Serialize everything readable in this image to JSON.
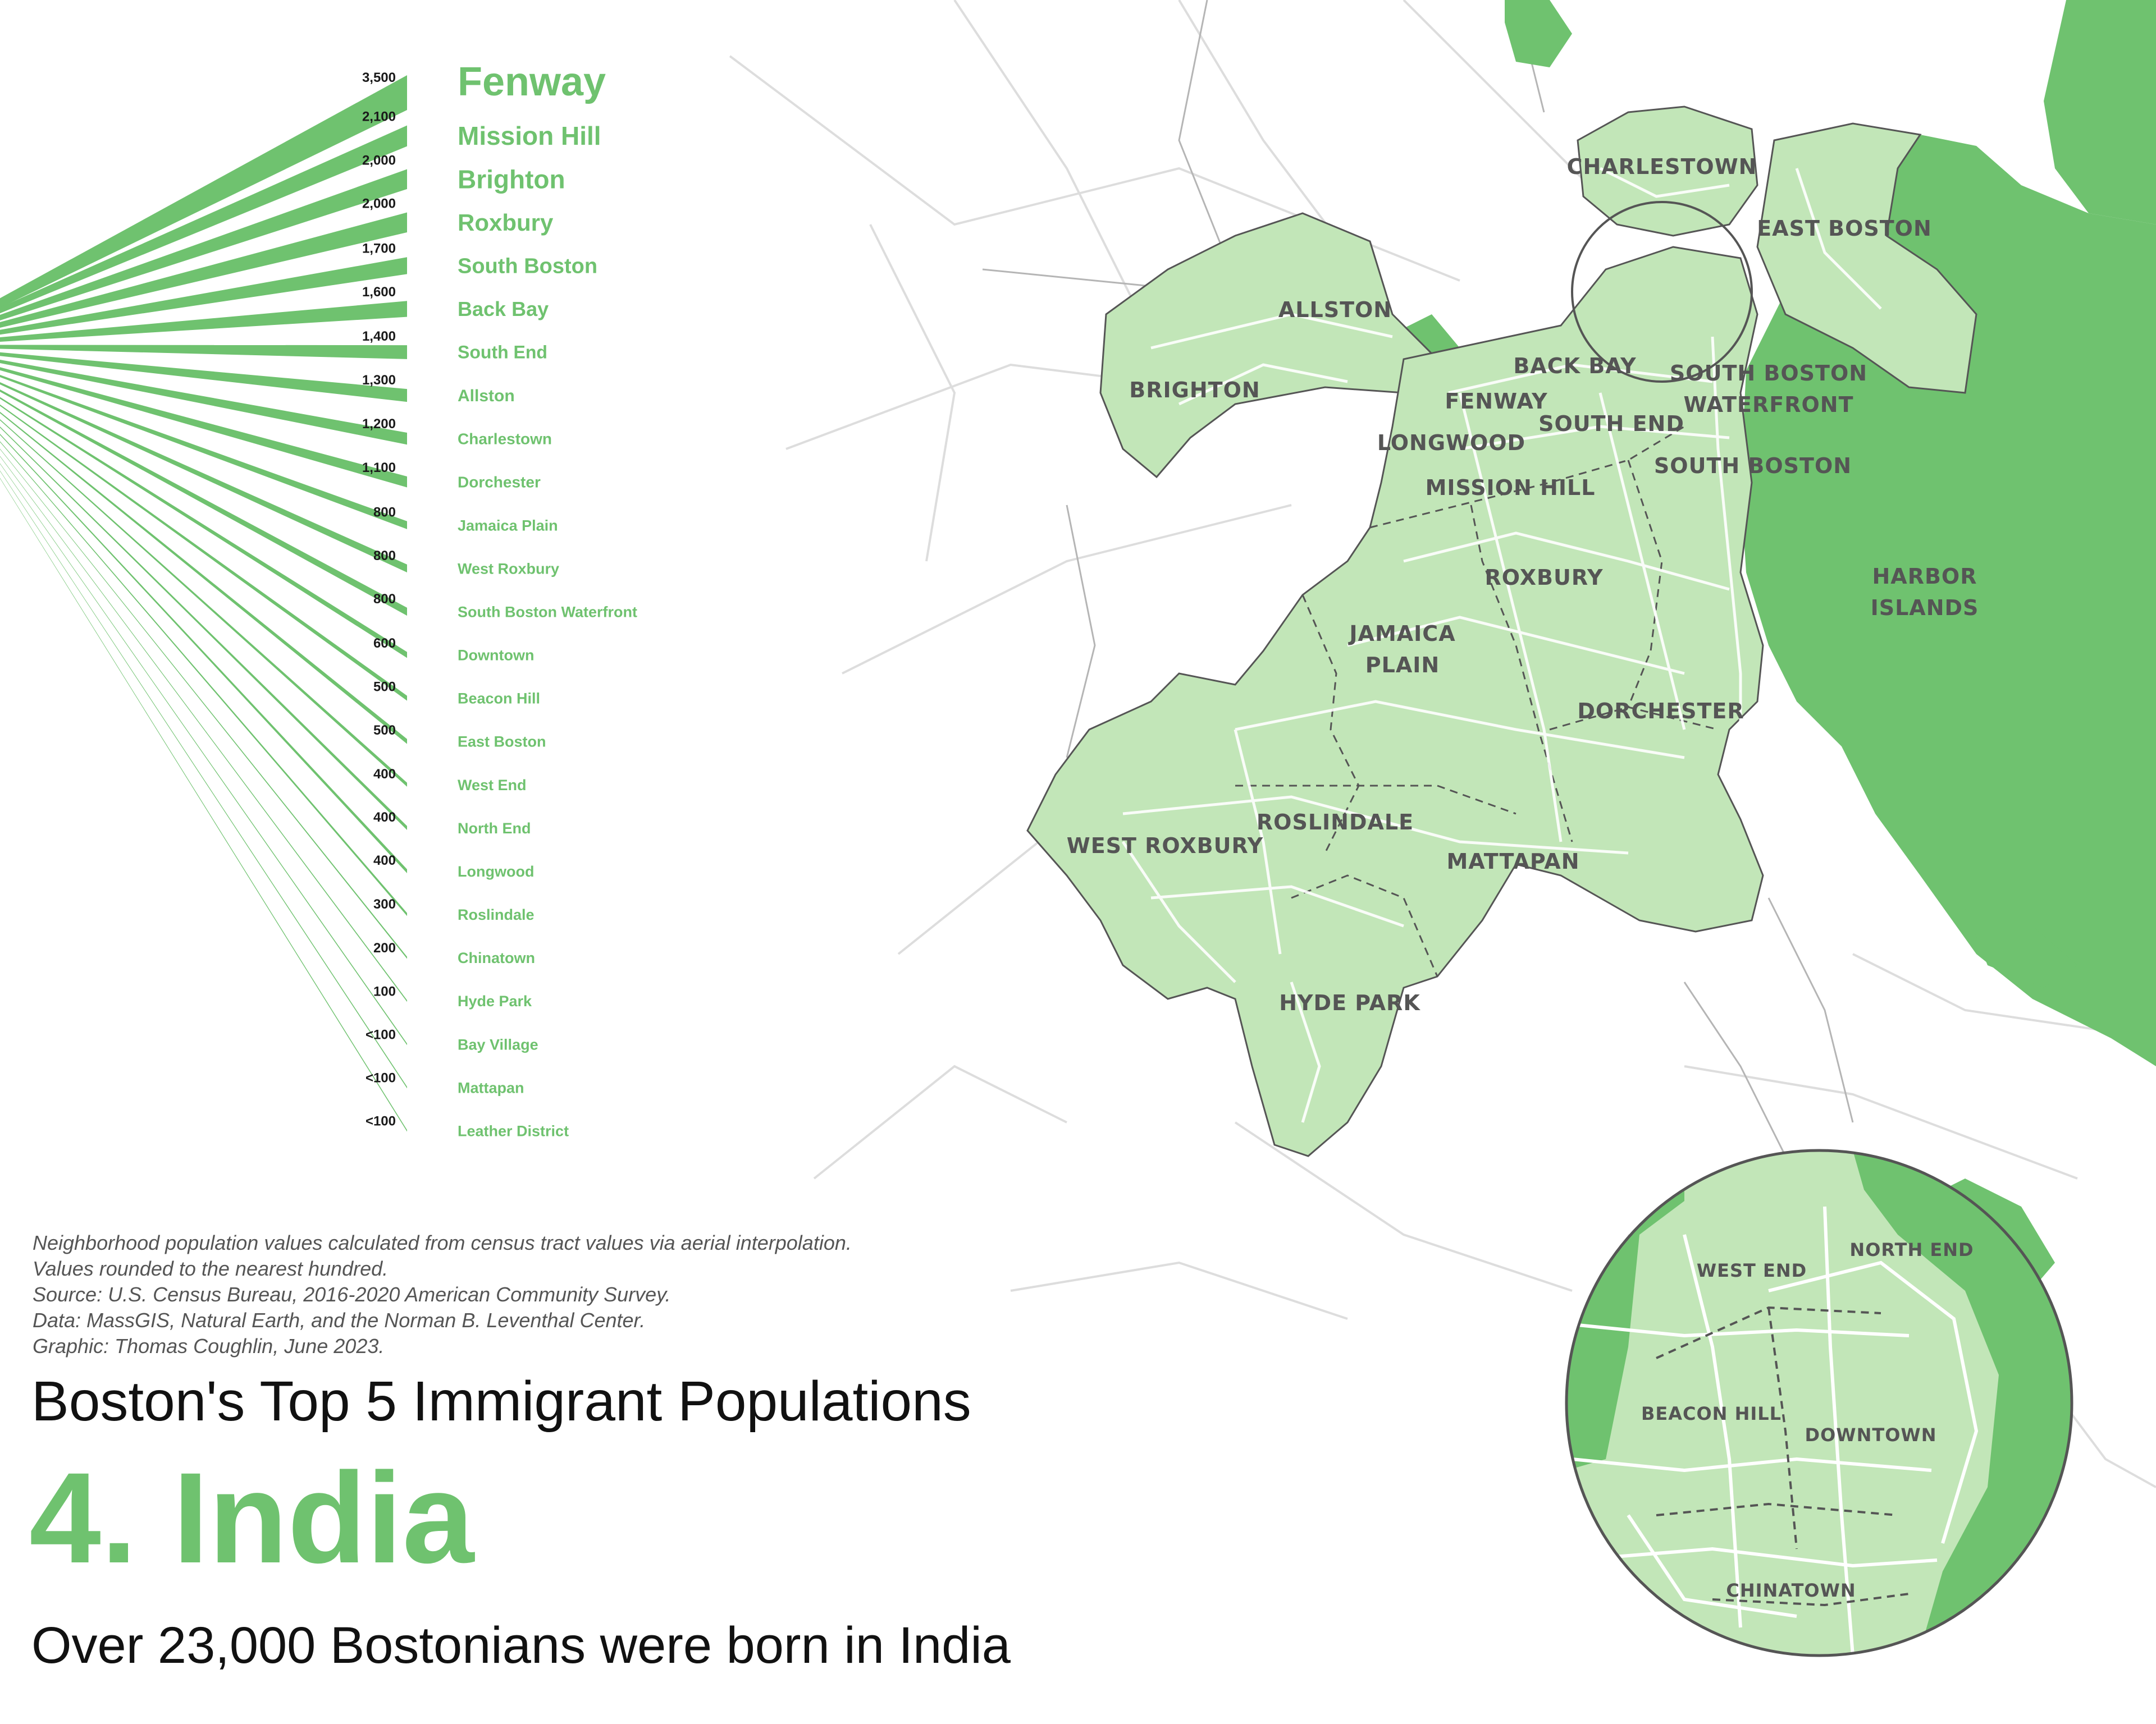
{
  "colors": {
    "water": "#6fc26f",
    "land": "#c2e6b8",
    "accent": "#6fc26f",
    "roads": "#dcdcdc",
    "border": "#555555"
  },
  "ranking": [
    {
      "name": "Fenway",
      "value": "3,500",
      "size": 72
    },
    {
      "name": "Mission Hill",
      "value": "2,100",
      "size": 46
    },
    {
      "name": "Brighton",
      "value": "2,000",
      "size": 46
    },
    {
      "name": "Roxbury",
      "value": "2,000",
      "size": 42
    },
    {
      "name": "South Boston",
      "value": "1,700",
      "size": 38
    },
    {
      "name": "Back Bay",
      "value": "1,600",
      "size": 36
    },
    {
      "name": "South End",
      "value": "1,400",
      "size": 32
    },
    {
      "name": "Allston",
      "value": "1,300",
      "size": 30
    },
    {
      "name": "Charlestown",
      "value": "1,200",
      "size": 28
    },
    {
      "name": "Dorchester",
      "value": "1,100",
      "size": 28
    },
    {
      "name": "Jamaica Plain",
      "value": "800",
      "size": 27
    },
    {
      "name": "West Roxbury",
      "value": "800",
      "size": 27
    },
    {
      "name": "South Boston Waterfront",
      "value": "800",
      "size": 27
    },
    {
      "name": "Downtown",
      "value": "600",
      "size": 27
    },
    {
      "name": "Beacon Hill",
      "value": "500",
      "size": 27
    },
    {
      "name": "East Boston",
      "value": "500",
      "size": 27
    },
    {
      "name": "West End",
      "value": "400",
      "size": 27
    },
    {
      "name": "North End",
      "value": "400",
      "size": 27
    },
    {
      "name": "Longwood",
      "value": "400",
      "size": 27
    },
    {
      "name": "Roslindale",
      "value": "300",
      "size": 27
    },
    {
      "name": "Chinatown",
      "value": "200",
      "size": 27
    },
    {
      "name": "Hyde Park",
      "value": "100",
      "size": 27
    },
    {
      "name": "Bay Village",
      "value": "<100",
      "size": 27
    },
    {
      "name": "Mattapan",
      "value": "<100",
      "size": 27
    },
    {
      "name": "Leather District",
      "value": "<100",
      "size": 27
    }
  ],
  "map_labels": {
    "charlestown": "CHARLESTOWN",
    "east_boston": "EAST BOSTON",
    "allston": "ALLSTON",
    "brighton": "BRIGHTON",
    "back_bay": "BACK BAY",
    "south_boston_waterfront_1": "SOUTH BOSTON",
    "south_boston_waterfront_2": "WATERFRONT",
    "fenway": "FENWAY",
    "south_end": "SOUTH END",
    "longwood": "LONGWOOD",
    "mission_hill": "MISSION HILL",
    "south_boston": "SOUTH BOSTON",
    "roxbury": "ROXBURY",
    "harbor_islands_1": "HARBOR",
    "harbor_islands_2": "ISLANDS",
    "jamaica_plain_1": "JAMAICA",
    "jamaica_plain_2": "PLAIN",
    "dorchester": "DORCHESTER",
    "west_roxbury": "WEST ROXBURY",
    "roslindale": "ROSLINDALE",
    "mattapan": "MATTAPAN",
    "hyde_park": "HYDE PARK"
  },
  "inset_labels": {
    "west_end": "WEST END",
    "north_end": "NORTH END",
    "beacon_hill": "BEACON HILL",
    "downtown": "DOWNTOWN",
    "chinatown": "CHINATOWN"
  },
  "notes": [
    "Neighborhood population values calculated from census tract values via aerial interpolation.",
    "Values rounded to the nearest hundred.",
    "Source: U.S. Census Bureau, 2016-2020 American Community Survey.",
    "Data: MassGIS, Natural Earth, and the Norman B. Leventhal Center.",
    "Graphic: Thomas Coughlin, June 2023."
  ],
  "title": "Boston's Top 5 Immigrant Populations",
  "country": "4. India",
  "subtitle": "Over 23,000 Bostonians were born in India"
}
